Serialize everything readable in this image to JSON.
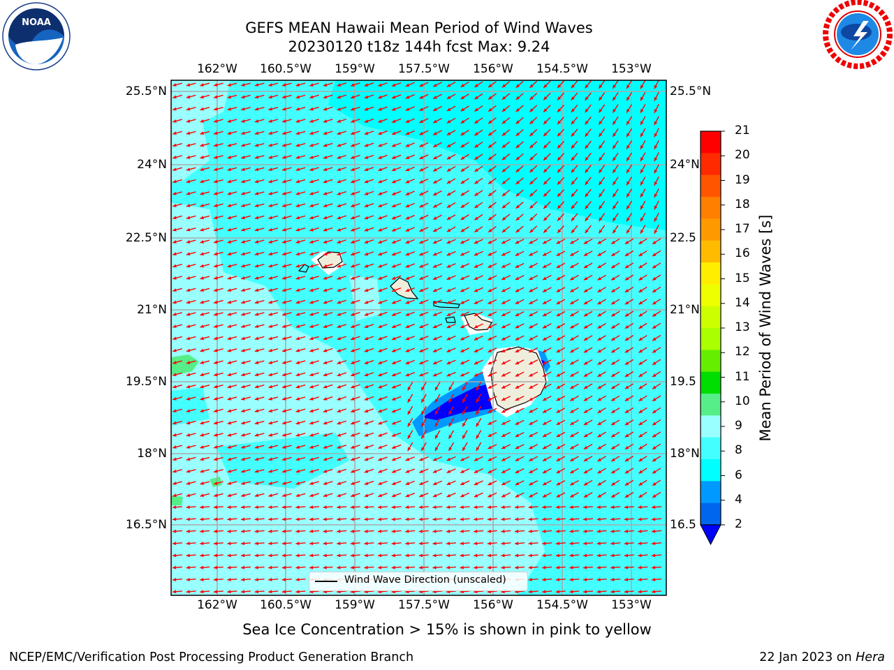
{
  "header": {
    "title_line1": "GEFS MEAN Hawaii Mean Period of Wind Waves",
    "title_line2": "20230120 t18z 144h fcst   Max: 9.24"
  },
  "logos": {
    "left": "noaa-logo",
    "right": "national-weather-service-logo"
  },
  "map": {
    "lon_labels": [
      "162°W",
      "160.5°W",
      "159°W",
      "157.5°W",
      "156°W",
      "154.5°W",
      "153°W"
    ],
    "lat_labels_left": [
      "25.5°N",
      "24°N",
      "22.5°N",
      "21°N",
      "19.5°N",
      "18°N",
      "16.5°N"
    ],
    "lat_labels_right": [
      "25.5°N",
      "24°N",
      "22.5",
      "21°N",
      "19.5",
      "18°N",
      "16.5"
    ],
    "legend_label": "Wind Wave Direction (unscaled)",
    "arrow_color": "#ff0000"
  },
  "colorbar": {
    "title": "Mean Period of Wind Waves [s]",
    "ticks": [
      "21",
      "20",
      "19",
      "18",
      "17",
      "16",
      "15",
      "14",
      "13",
      "12",
      "11",
      "10",
      "9",
      "8",
      "6",
      "4",
      "2"
    ],
    "colors": [
      "#ff0000",
      "#ff2a00",
      "#ff5500",
      "#ff7f00",
      "#ff9900",
      "#ffbb00",
      "#ffee00",
      "#eeff00",
      "#ccff00",
      "#aaff00",
      "#66ee00",
      "#00dd00",
      "#55ee88",
      "#99ffff",
      "#44ffff",
      "#00ffff",
      "#0099ff",
      "#0066ee"
    ],
    "under_color": "#0000ff"
  },
  "footer": {
    "note": "Sea Ice Concentration > 15% is shown in pink to yellow",
    "left": "NCEP/EMC/Verification Post Processing Product Generation Branch",
    "right_date": "22 Jan 2023 on ",
    "right_host": "Hera"
  }
}
